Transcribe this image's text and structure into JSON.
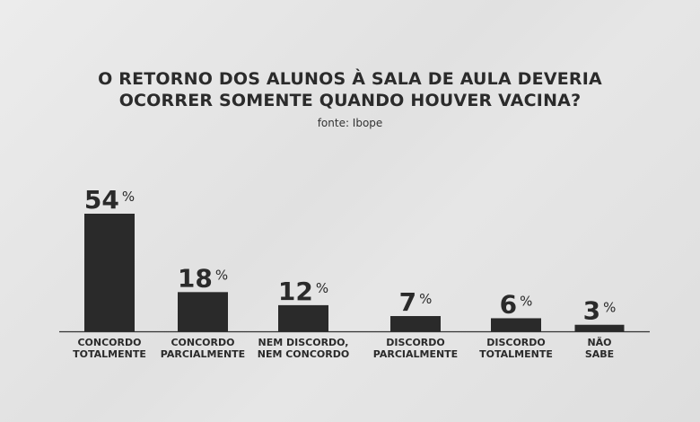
{
  "header": {
    "title_line1": "O RETORNO DOS ALUNOS À SALA DE AULA DEVERIA",
    "title_line2": "OCORRER SOMENTE QUANDO HOUVER VACINA?",
    "source": "fonte: Ibope"
  },
  "chart_data": {
    "type": "bar",
    "title": "O RETORNO DOS ALUNOS À SALA DE AULA DEVERIA OCORRER SOMENTE QUANDO HOUVER VACINA?",
    "categories": [
      [
        "CONCORDO",
        "TOTALMENTE"
      ],
      [
        "CONCORDO",
        "PARCIALMENTE"
      ],
      [
        "NEM DISCORDO,",
        "NEM CONCORDO"
      ],
      [
        "DISCORDO",
        "PARCIALMENTE"
      ],
      [
        "DISCORDO",
        "TOTALMENTE"
      ],
      [
        "NÃO",
        "SABE"
      ]
    ],
    "values": [
      54,
      18,
      12,
      7,
      6,
      3
    ],
    "value_suffix": "%",
    "bar_color": "#2a2a2a",
    "grid": false,
    "legend": "none"
  }
}
